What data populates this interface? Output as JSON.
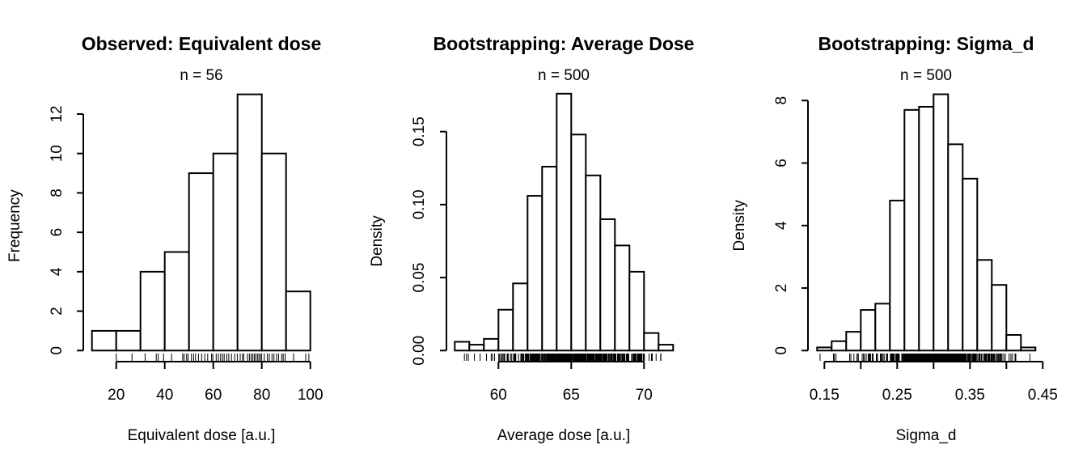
{
  "chart_data": [
    {
      "type": "bar",
      "subtype": "histogram",
      "title": "Observed: Equivalent dose",
      "subtitle": "n =  56",
      "xlabel": "Equivalent dose [a.u.]",
      "ylabel": "Frequency",
      "bins": [
        [
          10,
          20
        ],
        [
          20,
          30
        ],
        [
          30,
          40
        ],
        [
          40,
          50
        ],
        [
          50,
          60
        ],
        [
          60,
          70
        ],
        [
          70,
          80
        ],
        [
          80,
          90
        ],
        [
          90,
          100
        ]
      ],
      "values": [
        1,
        1,
        4,
        5,
        9,
        10,
        13,
        10,
        3
      ],
      "xticks": [
        20,
        40,
        60,
        80,
        100
      ],
      "xtick_labels": [
        "20",
        "40",
        "60",
        "80",
        "100"
      ],
      "yticks": [
        0,
        2,
        4,
        6,
        8,
        10,
        12
      ],
      "ytick_labels": [
        "0",
        "2",
        "4",
        "6",
        "8",
        "10",
        "12"
      ],
      "xlim": [
        10,
        100
      ],
      "ylim": [
        0,
        13
      ],
      "rug": [
        20.0,
        26.5,
        31.9,
        36.5,
        37.3,
        39.5,
        42.8,
        47.4,
        48.0,
        49.0,
        49.6,
        51.0,
        51.9,
        52.7,
        53.9,
        55.2,
        56.5,
        57.7,
        59.3,
        59.8,
        61.2,
        62.1,
        63.0,
        63.8,
        64.5,
        65.6,
        66.4,
        67.5,
        68.8,
        69.9,
        71.1,
        72.0,
        72.6,
        74.1,
        74.9,
        75.6,
        76.3,
        76.9,
        77.5,
        78.2,
        78.8,
        79.4,
        79.9,
        81.0,
        82.3,
        83.1,
        84.2,
        85.0,
        86.1,
        86.9,
        88.2,
        88.8,
        89.6,
        93.1,
        98.1,
        99.4
      ],
      "grid": false
    },
    {
      "type": "bar",
      "subtype": "histogram",
      "title": "Bootstrapping: Average Dose",
      "subtitle": "n =  500",
      "xlabel": "Average dose [a.u.]",
      "ylabel": "Density",
      "bins": [
        [
          57,
          58
        ],
        [
          58,
          59
        ],
        [
          59,
          60
        ],
        [
          60,
          61
        ],
        [
          61,
          62
        ],
        [
          62,
          63
        ],
        [
          63,
          64
        ],
        [
          64,
          65
        ],
        [
          65,
          66
        ],
        [
          66,
          67
        ],
        [
          67,
          68
        ],
        [
          68,
          69
        ],
        [
          69,
          70
        ],
        [
          70,
          71
        ],
        [
          71,
          72
        ]
      ],
      "values": [
        0.006,
        0.004,
        0.008,
        0.028,
        0.046,
        0.106,
        0.126,
        0.176,
        0.148,
        0.12,
        0.09,
        0.072,
        0.054,
        0.012,
        0.004
      ],
      "xticks": [
        60,
        65,
        70
      ],
      "xtick_labels": [
        "60",
        "65",
        "70"
      ],
      "yticks": [
        0.0,
        0.05,
        0.1,
        0.15
      ],
      "ytick_labels": [
        "0.00",
        "0.05",
        "0.10",
        "0.15"
      ],
      "xlim": [
        57,
        72
      ],
      "ylim": [
        0,
        0.176
      ],
      "rug_counts_per_bin": [
        3,
        2,
        4,
        14,
        23,
        53,
        63,
        88,
        74,
        60,
        45,
        36,
        27,
        6,
        2
      ],
      "grid": false
    },
    {
      "type": "bar",
      "subtype": "histogram",
      "title": "Bootstrapping: Sigma_d",
      "subtitle": "n =  500",
      "xlabel": "Sigma_d",
      "ylabel": "Density",
      "bins": [
        [
          0.14,
          0.16
        ],
        [
          0.16,
          0.18
        ],
        [
          0.18,
          0.2
        ],
        [
          0.2,
          0.22
        ],
        [
          0.22,
          0.24
        ],
        [
          0.24,
          0.26
        ],
        [
          0.26,
          0.28
        ],
        [
          0.28,
          0.3
        ],
        [
          0.3,
          0.32
        ],
        [
          0.32,
          0.34
        ],
        [
          0.34,
          0.36
        ],
        [
          0.36,
          0.38
        ],
        [
          0.38,
          0.4
        ],
        [
          0.4,
          0.42
        ],
        [
          0.42,
          0.44
        ]
      ],
      "values": [
        0.1,
        0.3,
        0.6,
        1.3,
        1.5,
        4.8,
        7.7,
        7.8,
        8.2,
        6.6,
        5.5,
        2.9,
        2.1,
        0.5,
        0.1
      ],
      "xticks": [
        0.15,
        0.2,
        0.25,
        0.3,
        0.35,
        0.4,
        0.45
      ],
      "xtick_labels": [
        "0.15",
        "",
        "0.25",
        "",
        "0.35",
        "",
        "0.45"
      ],
      "yticks": [
        0,
        2,
        4,
        6,
        8
      ],
      "ytick_labels": [
        "0",
        "2",
        "4",
        "6",
        "8"
      ],
      "xlim": [
        0.14,
        0.45
      ],
      "ylim": [
        0,
        8.2
      ],
      "rug_counts_per_bin": [
        1,
        3,
        6,
        13,
        15,
        48,
        77,
        78,
        82,
        66,
        55,
        29,
        21,
        5,
        1
      ],
      "grid": false
    }
  ]
}
